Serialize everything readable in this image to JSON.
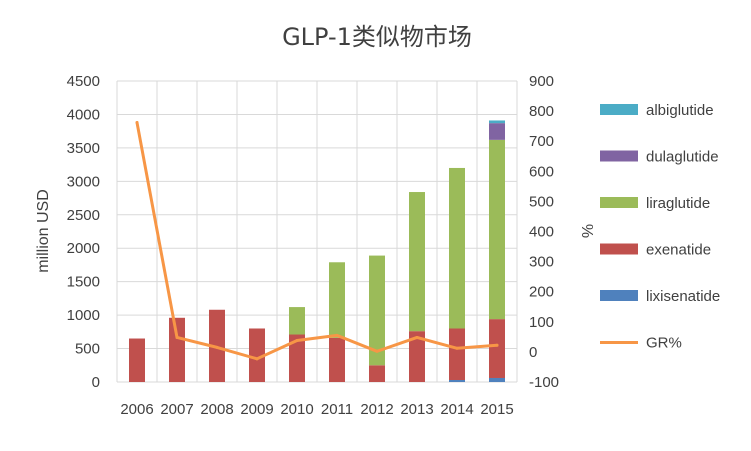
{
  "chart_data": {
    "type": "bar",
    "title": "GLP-1类似物市场",
    "ylabel": "million USD",
    "y2label": "%",
    "categories": [
      "2006",
      "2007",
      "2008",
      "2009",
      "2010",
      "2011",
      "2012",
      "2013",
      "2014",
      "2015"
    ],
    "ylim": [
      0,
      4500
    ],
    "yticks": [
      "0",
      "500",
      "1000",
      "1500",
      "2000",
      "2500",
      "3000",
      "3500",
      "4000",
      "4500"
    ],
    "y2lim": [
      -100,
      900
    ],
    "y2ticks": [
      "-100",
      "0",
      "100",
      "200",
      "300",
      "400",
      "500",
      "600",
      "700",
      "800",
      "900"
    ],
    "grid": true,
    "legend_position": "right",
    "series": [
      {
        "name": "lixisenatide",
        "type": "bar",
        "color": "#4F81BD",
        "values": [
          0,
          0,
          0,
          0,
          0,
          0,
          0,
          0,
          30,
          60
        ]
      },
      {
        "name": "exenatide",
        "type": "bar",
        "color": "#C0504D",
        "values": [
          650,
          960,
          1080,
          800,
          710,
          660,
          250,
          760,
          770,
          880
        ]
      },
      {
        "name": "liraglutide",
        "type": "bar",
        "color": "#9BBB59",
        "values": [
          0,
          0,
          0,
          0,
          410,
          1130,
          1640,
          2080,
          2400,
          2680
        ]
      },
      {
        "name": "dulaglutide",
        "type": "bar",
        "color": "#8064A2",
        "values": [
          0,
          0,
          0,
          0,
          0,
          0,
          0,
          0,
          0,
          250
        ]
      },
      {
        "name": "albiglutide",
        "type": "bar",
        "color": "#4BACC6",
        "values": [
          0,
          0,
          0,
          0,
          0,
          0,
          0,
          0,
          0,
          40
        ]
      },
      {
        "name": "GR%",
        "type": "line",
        "axis": "right",
        "color": "#F79646",
        "values": [
          762,
          48,
          15,
          -23,
          38,
          55,
          2,
          48,
          12,
          22
        ]
      }
    ],
    "legend_order": [
      "albiglutide",
      "dulaglutide",
      "liraglutide",
      "exenatide",
      "lixisenatide",
      "GR%"
    ]
  }
}
